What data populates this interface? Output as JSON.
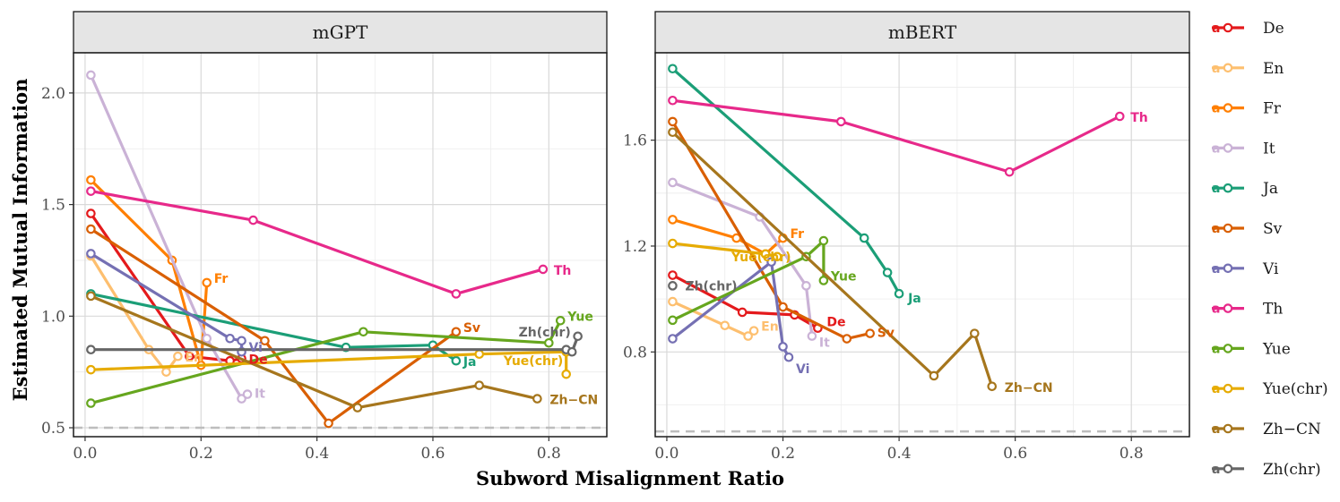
{
  "chart_data": {
    "type": "line",
    "xlabel": "Subword Misalignment Ratio",
    "ylabel": "Estimated Mutual Information",
    "legend_position": "right",
    "colors": {
      "De": "#e41a1c",
      "En": "#fdbf6f",
      "Fr": "#ff7f00",
      "It": "#cab2d6",
      "Ja": "#1b9e77",
      "Sv": "#d95f02",
      "Vi": "#7570b3",
      "Th": "#e7298a",
      "Yue": "#66a61e",
      "Yue(chr)": "#e6ab02",
      "Zh−CN": "#a6761d",
      "Zh(chr)": "#666666"
    },
    "legend": [
      "De",
      "En",
      "Fr",
      "It",
      "Ja",
      "Sv",
      "Vi",
      "Th",
      "Yue",
      "Yue(chr)",
      "Zh−CN",
      "Zh(chr)"
    ],
    "legend_glyph": "a",
    "panels": [
      {
        "title": "mGPT",
        "xlim": [
          -0.02,
          0.9
        ],
        "ylim": [
          0.46,
          2.18
        ],
        "xticks": [
          0.0,
          0.2,
          0.4,
          0.6,
          0.8
        ],
        "xtick_labels": [
          "0.0",
          "0.2",
          "0.4",
          "0.6",
          "0.8"
        ],
        "yticks": [
          0.5,
          1.0,
          1.5,
          2.0
        ],
        "ytick_labels": [
          "0.5",
          "1.0",
          "1.5",
          "2.0"
        ],
        "baseline": 0.5,
        "series": [
          {
            "name": "De",
            "label": "De",
            "x": [
              0.01,
              0.18,
              0.25,
              0.27
            ],
            "y": [
              1.46,
              0.82,
              0.8,
              0.81
            ]
          },
          {
            "name": "En",
            "label": "En",
            "x": [
              0.01,
              0.11,
              0.14,
              0.16
            ],
            "y": [
              1.27,
              0.85,
              0.75,
              0.82
            ]
          },
          {
            "name": "Fr",
            "label": "Fr",
            "x": [
              0.01,
              0.15,
              0.2,
              0.21
            ],
            "y": [
              1.61,
              1.25,
              0.78,
              1.15
            ]
          },
          {
            "name": "It",
            "label": "It",
            "x": [
              0.01,
              0.21,
              0.27,
              0.28
            ],
            "y": [
              2.08,
              0.9,
              0.63,
              0.65
            ]
          },
          {
            "name": "Ja",
            "label": "Ja",
            "x": [
              0.01,
              0.45,
              0.6,
              0.64
            ],
            "y": [
              1.1,
              0.86,
              0.87,
              0.8
            ]
          },
          {
            "name": "Sv",
            "label": "Sv",
            "x": [
              0.01,
              0.31,
              0.42,
              0.64
            ],
            "y": [
              1.39,
              0.89,
              0.52,
              0.93
            ]
          },
          {
            "name": "Vi",
            "label": "Vi",
            "x": [
              0.01,
              0.25,
              0.27,
              0.27
            ],
            "y": [
              1.28,
              0.9,
              0.89,
              0.84
            ]
          },
          {
            "name": "Th",
            "label": "Th",
            "x": [
              0.01,
              0.29,
              0.64,
              0.79
            ],
            "y": [
              1.56,
              1.43,
              1.1,
              1.21
            ]
          },
          {
            "name": "Yue",
            "label": "Yue",
            "x": [
              0.01,
              0.48,
              0.8,
              0.82
            ],
            "y": [
              0.61,
              0.93,
              0.88,
              0.98
            ]
          },
          {
            "name": "Yue(chr)",
            "label": "Yue(chr)",
            "x": [
              0.01,
              0.68,
              0.83,
              0.83
            ],
            "y": [
              0.76,
              0.83,
              0.84,
              0.74
            ]
          },
          {
            "name": "Zh−CN",
            "label": "Zh−CN",
            "x": [
              0.01,
              0.47,
              0.68,
              0.78
            ],
            "y": [
              1.09,
              0.59,
              0.69,
              0.63
            ]
          },
          {
            "name": "Zh(chr)",
            "label": "Zh(chr)",
            "x": [
              0.01,
              0.83,
              0.84,
              0.85
            ],
            "y": [
              0.85,
              0.85,
              0.84,
              0.91
            ]
          }
        ]
      },
      {
        "title": "mBERT",
        "xlim": [
          -0.02,
          0.9
        ],
        "ylim": [
          0.48,
          1.93
        ],
        "xticks": [
          0.0,
          0.2,
          0.4,
          0.6,
          0.8
        ],
        "xtick_labels": [
          "0.0",
          "0.2",
          "0.4",
          "0.6",
          "0.8"
        ],
        "yticks": [
          0.8,
          1.2,
          1.6
        ],
        "ytick_labels": [
          "0.8",
          "1.2",
          "1.6"
        ],
        "baseline": 0.5,
        "series": [
          {
            "name": "De",
            "label": "De",
            "x": [
              0.01,
              0.13,
              0.22,
              0.26
            ],
            "y": [
              1.09,
              0.95,
              0.94,
              0.89
            ]
          },
          {
            "name": "En",
            "label": "En",
            "x": [
              0.01,
              0.1,
              0.14,
              0.15
            ],
            "y": [
              0.99,
              0.9,
              0.86,
              0.88
            ]
          },
          {
            "name": "Fr",
            "label": "Fr",
            "x": [
              0.01,
              0.12,
              0.17,
              0.2
            ],
            "y": [
              1.3,
              1.23,
              1.17,
              1.23
            ]
          },
          {
            "name": "It",
            "label": "It",
            "x": [
              0.01,
              0.16,
              0.24,
              0.25
            ],
            "y": [
              1.44,
              1.31,
              1.05,
              0.86
            ]
          },
          {
            "name": "Ja",
            "label": "Ja",
            "x": [
              0.01,
              0.34,
              0.38,
              0.4
            ],
            "y": [
              1.87,
              1.23,
              1.1,
              1.02
            ]
          },
          {
            "name": "Sv",
            "label": "Sv",
            "x": [
              0.01,
              0.2,
              0.31,
              0.35
            ],
            "y": [
              1.67,
              0.97,
              0.85,
              0.87
            ]
          },
          {
            "name": "Vi",
            "label": "Vi",
            "x": [
              0.01,
              0.18,
              0.2,
              0.21
            ],
            "y": [
              0.85,
              1.14,
              0.82,
              0.78
            ]
          },
          {
            "name": "Th",
            "label": "Th",
            "x": [
              0.01,
              0.3,
              0.59,
              0.78
            ],
            "y": [
              1.75,
              1.67,
              1.48,
              1.69
            ]
          },
          {
            "name": "Yue",
            "label": "Yue",
            "x": [
              0.01,
              0.24,
              0.27,
              0.27
            ],
            "y": [
              0.92,
              1.16,
              1.22,
              1.07
            ]
          },
          {
            "name": "Yue(chr)",
            "label": "Yue(chr)",
            "x": [
              0.01,
              0.17,
              0.19
            ],
            "y": [
              1.21,
              1.17,
              1.16
            ]
          },
          {
            "name": "Zh−CN",
            "label": "Zh−CN",
            "x": [
              0.01,
              0.46,
              0.53,
              0.56
            ],
            "y": [
              1.63,
              0.71,
              0.87,
              0.67
            ]
          },
          {
            "name": "Zh(chr)",
            "label": "Zh(chr)",
            "x": [
              0.01
            ],
            "y": [
              1.05
            ]
          }
        ]
      }
    ]
  }
}
